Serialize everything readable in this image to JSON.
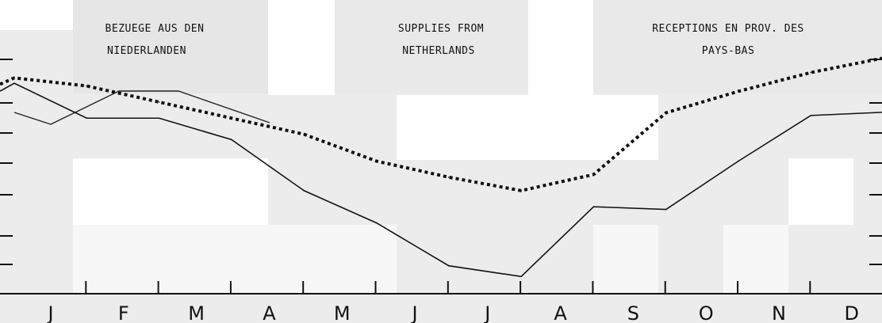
{
  "titles": {
    "de_line1": "BEZUEGE AUS DEN",
    "de_line2": "NIEDERLANDEN",
    "en_line1": "SUPPLIES FROM",
    "en_line2": "NETHERLANDS",
    "fr_line1": "RECEPTIONS EN PROV. DES",
    "fr_line2": "PAYS-BAS"
  },
  "colors": {
    "background": "#ececec",
    "lines": "#111111"
  },
  "chart_data": {
    "type": "line",
    "categories": [
      "J",
      "F",
      "M",
      "A",
      "M",
      "J",
      "J",
      "A",
      "S",
      "O",
      "N",
      "D"
    ],
    "ylim": [
      0,
      100
    ],
    "grid": false,
    "series": [
      {
        "style": "dotted-bold",
        "values": [
          81,
          78,
          72,
          66,
          60,
          50,
          44,
          39,
          45,
          68,
          76,
          83
        ]
      },
      {
        "style": "solid",
        "values": [
          79,
          66,
          66,
          58,
          39,
          27,
          11,
          7,
          33,
          32,
          50,
          67
        ]
      }
    ]
  }
}
